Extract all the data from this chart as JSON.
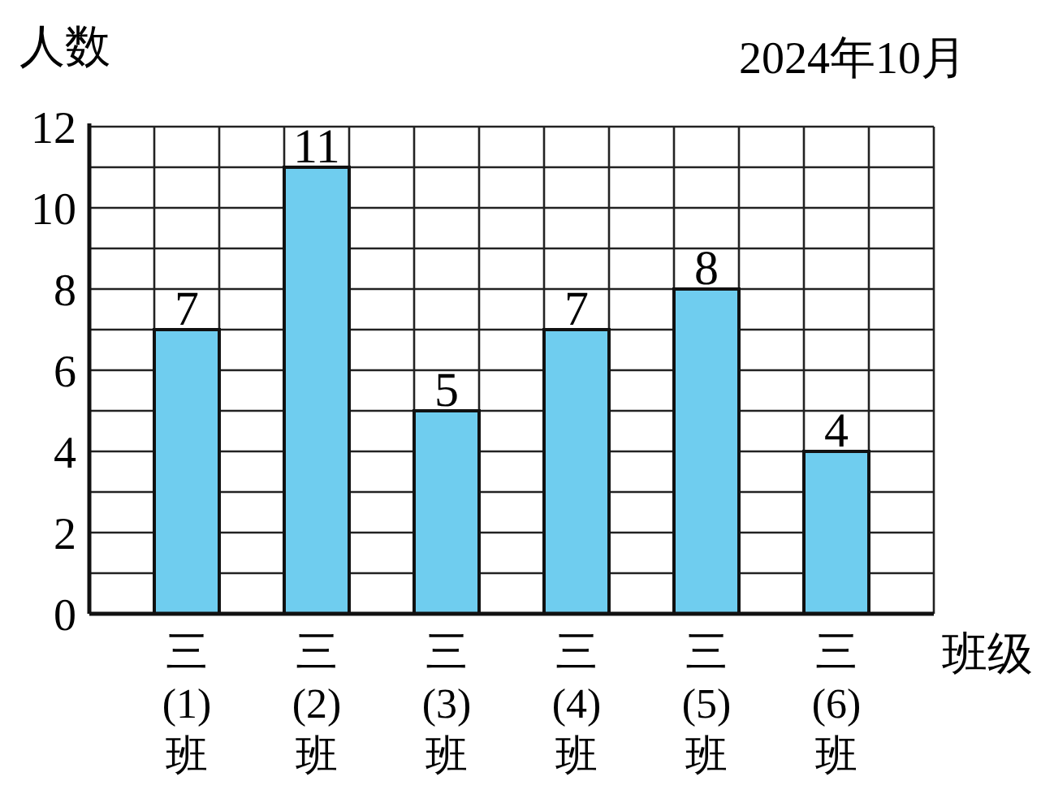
{
  "chart_data": {
    "type": "bar",
    "ylabel": "人数",
    "xlabel": "班级",
    "annotations": [
      "2024年10月"
    ],
    "categories": [
      "三\n(1)\n班",
      "三\n(2)\n班",
      "三\n(3)\n班",
      "三\n(4)\n班",
      "三\n(5)\n班",
      "三\n(6)\n班"
    ],
    "values": [
      7,
      11,
      5,
      7,
      8,
      4
    ],
    "color": "#6fcdef",
    "ylim": [
      0,
      12
    ],
    "yticks": [
      0,
      {
        "value": 1,
        "label": null
      },
      2,
      {
        "value": 3,
        "label": null
      },
      4,
      {
        "value": 5,
        "label": null
      },
      6,
      {
        "value": 7,
        "label": null
      },
      8,
      {
        "value": 9,
        "label": null
      },
      10,
      {
        "value": 11,
        "label": null
      },
      12
    ],
    "grid": true,
    "data_labels": true
  }
}
